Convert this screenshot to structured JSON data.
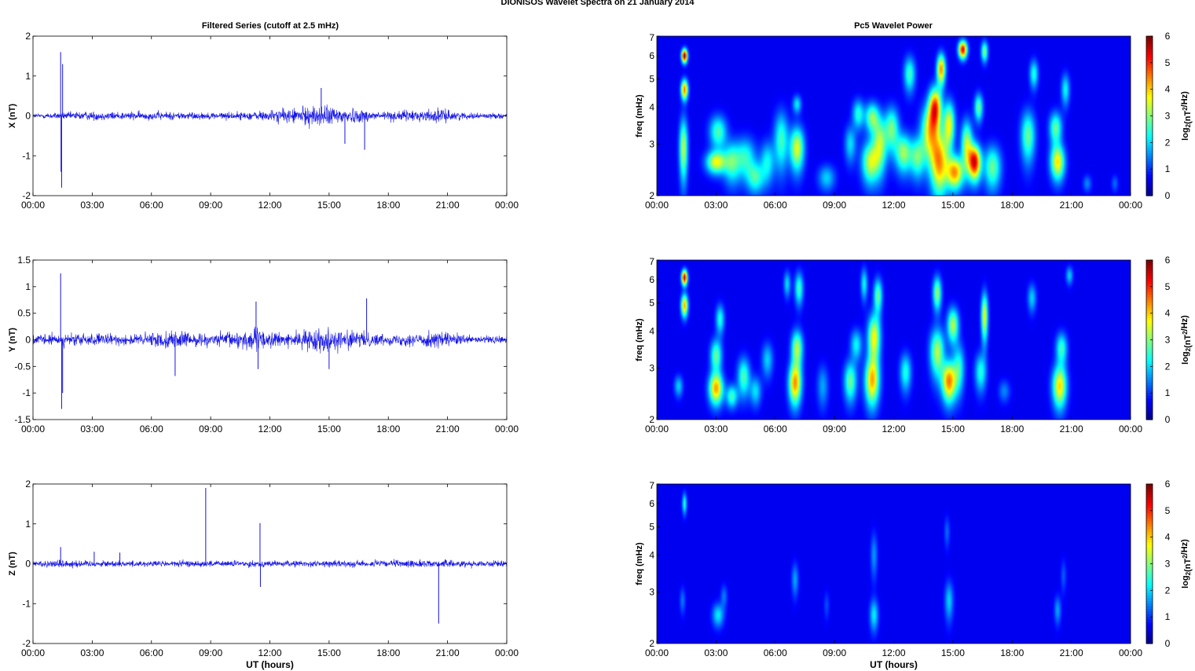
{
  "figure": {
    "title": "DIONISOS Wavelet Spectra on 21 January   2014",
    "left_column_title": "Filtered Series (cutoff at 2.5 mHz)",
    "right_column_title": "Pc5 Wavelet Power",
    "xlabel": "UT (hours)",
    "colors": {
      "trace": "#1414e6",
      "axis": "#000000",
      "heat_bg": "#00008f"
    }
  },
  "chart_data": [
    {
      "id": "x-series",
      "type": "line",
      "title": "",
      "ylabel": "X (nT)",
      "xlabel": "",
      "xlim": [
        0,
        24
      ],
      "ylim": [
        -2,
        2
      ],
      "xticks": [
        "00:00",
        "03:00",
        "06:00",
        "09:00",
        "12:00",
        "15:00",
        "18:00",
        "21:00",
        "00:00"
      ],
      "yticks": [
        -2,
        -1,
        0,
        1,
        2
      ],
      "yticklabels": [
        "-2",
        "-1",
        "0",
        "1",
        "2"
      ],
      "baseline_noise": 0.06,
      "activity": [
        [
          0,
          0.6
        ],
        [
          2.5,
          1.2
        ],
        [
          4.5,
          1.1
        ],
        [
          7,
          1.1
        ],
        [
          9,
          0.9
        ],
        [
          11,
          1.1
        ],
        [
          13,
          2.0
        ],
        [
          14.5,
          3.0
        ],
        [
          15.5,
          2.4
        ],
        [
          17.5,
          1.3
        ],
        [
          19,
          1.4
        ],
        [
          20.5,
          1.9
        ],
        [
          22,
          0.8
        ],
        [
          24,
          0.7
        ]
      ],
      "spikes": [
        [
          1.4,
          1.6
        ],
        [
          1.45,
          -1.8
        ],
        [
          1.5,
          1.3
        ],
        [
          1.42,
          -1.4
        ],
        [
          14.6,
          0.7
        ],
        [
          16.8,
          -0.85
        ],
        [
          15.8,
          -0.7
        ]
      ],
      "series": [
        {
          "name": "",
          "color": "#1414e6"
        }
      ]
    },
    {
      "id": "y-series",
      "type": "line",
      "title": "",
      "ylabel": "Y (nT)",
      "xlabel": "",
      "xlim": [
        0,
        24
      ],
      "ylim": [
        -1.5,
        1.5
      ],
      "xticks": [
        "00:00",
        "03:00",
        "06:00",
        "09:00",
        "12:00",
        "15:00",
        "18:00",
        "21:00",
        "00:00"
      ],
      "yticks": [
        -1.5,
        -1,
        -0.5,
        0,
        0.5,
        1,
        1.5
      ],
      "yticklabels": [
        "-1.5",
        "-1",
        "-0.5",
        "0",
        "0.5",
        "1",
        "1.5"
      ],
      "baseline_noise": 0.06,
      "activity": [
        [
          0,
          1.0
        ],
        [
          2.5,
          1.3
        ],
        [
          4.5,
          1.0
        ],
        [
          7,
          1.8
        ],
        [
          9,
          1.1
        ],
        [
          11,
          2.3
        ],
        [
          13,
          1.2
        ],
        [
          14.5,
          2.4
        ],
        [
          16.5,
          1.6
        ],
        [
          18,
          1.0
        ],
        [
          20.5,
          1.7
        ],
        [
          22,
          0.8
        ],
        [
          24,
          0.8
        ]
      ],
      "spikes": [
        [
          1.4,
          1.25
        ],
        [
          1.45,
          -1.3
        ],
        [
          1.5,
          -1.0
        ],
        [
          11.3,
          0.72
        ],
        [
          16.9,
          0.78
        ],
        [
          7.2,
          -0.68
        ],
        [
          11.4,
          -0.55
        ],
        [
          15.0,
          -0.55
        ]
      ],
      "series": [
        {
          "name": "",
          "color": "#1414e6"
        }
      ]
    },
    {
      "id": "z-series",
      "type": "line",
      "title": "",
      "ylabel": "Z (nT)",
      "xlabel": "UT (hours)",
      "xlim": [
        0,
        24
      ],
      "ylim": [
        -2,
        2
      ],
      "xticks": [
        "00:00",
        "03:00",
        "06:00",
        "09:00",
        "12:00",
        "15:00",
        "18:00",
        "21:00",
        "00:00"
      ],
      "yticks": [
        -2,
        -1,
        0,
        1,
        2
      ],
      "yticklabels": [
        "-2",
        "-1",
        "0",
        "1",
        "2"
      ],
      "baseline_noise": 0.05,
      "activity": [
        [
          0,
          1.0
        ],
        [
          1.4,
          1.4
        ],
        [
          3,
          1.0
        ],
        [
          9,
          1.0
        ],
        [
          12,
          1.0
        ],
        [
          15,
          1.0
        ],
        [
          20.5,
          1.2
        ],
        [
          24,
          0.9
        ]
      ],
      "spikes": [
        [
          8.75,
          1.9
        ],
        [
          11.5,
          1.02
        ],
        [
          11.52,
          -0.58
        ],
        [
          20.55,
          -1.5
        ],
        [
          1.4,
          0.42
        ],
        [
          3.1,
          0.3
        ],
        [
          4.4,
          0.28
        ]
      ],
      "series": [
        {
          "name": "",
          "color": "#1414e6"
        }
      ]
    },
    {
      "id": "x-wavelet",
      "type": "heatmap",
      "title": "",
      "ylabel": "freq (mHz)",
      "xlabel": "",
      "xlim": [
        0,
        24
      ],
      "ylim": [
        2,
        7
      ],
      "yscale": "log",
      "xticks": [
        "00:00",
        "03:00",
        "06:00",
        "09:00",
        "12:00",
        "15:00",
        "18:00",
        "21:00",
        "00:00"
      ],
      "yticks": [
        2,
        3,
        4,
        5,
        6,
        7
      ],
      "yticklabels": [
        "2",
        "3",
        "4",
        "5",
        "6",
        "7"
      ],
      "colorbar": {
        "label": "log2(nT2/Hz)",
        "range": [
          0,
          6
        ],
        "ticks": [
          "0",
          "1",
          "2",
          "3",
          "4",
          "5",
          "6"
        ]
      },
      "blobs": [
        [
          1.35,
          2.9,
          0.15,
          0.5,
          3.0
        ],
        [
          1.4,
          6.0,
          0.1,
          0.22,
          6.0
        ],
        [
          1.4,
          4.6,
          0.12,
          0.25,
          4.4
        ],
        [
          3.0,
          2.6,
          0.35,
          0.16,
          3.3
        ],
        [
          3.1,
          3.3,
          0.3,
          0.3,
          2.3
        ],
        [
          3.8,
          2.6,
          0.3,
          0.3,
          2.2
        ],
        [
          4.5,
          2.7,
          0.35,
          0.3,
          2.0
        ],
        [
          5.0,
          2.3,
          0.3,
          0.2,
          2.0
        ],
        [
          5.6,
          2.6,
          0.25,
          0.3,
          1.8
        ],
        [
          6.3,
          3.1,
          0.25,
          0.5,
          2.2
        ],
        [
          7.1,
          2.9,
          0.25,
          0.35,
          3.3
        ],
        [
          7.1,
          4.1,
          0.15,
          0.2,
          1.7
        ],
        [
          8.6,
          2.3,
          0.3,
          0.16,
          1.5
        ],
        [
          9.8,
          3.0,
          0.2,
          0.3,
          1.6
        ],
        [
          10.2,
          3.8,
          0.2,
          0.3,
          2.0
        ],
        [
          10.8,
          2.6,
          0.3,
          0.3,
          3.0
        ],
        [
          10.9,
          3.7,
          0.25,
          0.3,
          2.6
        ],
        [
          11.3,
          3.0,
          0.25,
          0.45,
          2.8
        ],
        [
          11.9,
          3.4,
          0.25,
          0.4,
          2.5
        ],
        [
          12.5,
          2.8,
          0.3,
          0.3,
          2.8
        ],
        [
          12.8,
          5.2,
          0.2,
          0.5,
          2.2
        ],
        [
          13.2,
          2.7,
          0.25,
          0.3,
          2.3
        ],
        [
          13.8,
          3.3,
          0.3,
          0.5,
          3.2
        ],
        [
          14.1,
          4.0,
          0.22,
          0.45,
          4.6
        ],
        [
          14.3,
          2.6,
          0.3,
          0.45,
          4.0
        ],
        [
          14.4,
          5.4,
          0.15,
          0.45,
          4.2
        ],
        [
          14.8,
          3.5,
          0.2,
          0.45,
          3.4
        ],
        [
          15.1,
          2.4,
          0.3,
          0.22,
          4.1
        ],
        [
          15.5,
          6.3,
          0.15,
          0.3,
          5.3
        ],
        [
          15.7,
          3.0,
          0.2,
          0.4,
          3.0
        ],
        [
          16.1,
          2.6,
          0.22,
          0.25,
          5.3
        ],
        [
          16.3,
          4.0,
          0.15,
          0.3,
          2.5
        ],
        [
          16.6,
          6.2,
          0.12,
          0.35,
          2.6
        ],
        [
          17.0,
          2.5,
          0.3,
          0.3,
          2.5
        ],
        [
          18.8,
          3.2,
          0.25,
          0.45,
          2.5
        ],
        [
          19.1,
          5.2,
          0.15,
          0.4,
          2.0
        ],
        [
          20.3,
          2.6,
          0.25,
          0.25,
          3.6
        ],
        [
          20.2,
          3.4,
          0.22,
          0.3,
          2.5
        ],
        [
          20.7,
          4.6,
          0.15,
          0.4,
          1.8
        ],
        [
          21.8,
          2.2,
          0.15,
          0.1,
          1.0
        ],
        [
          23.2,
          2.2,
          0.12,
          0.1,
          0.8
        ]
      ]
    },
    {
      "id": "y-wavelet",
      "type": "heatmap",
      "title": "",
      "ylabel": "freq (mHz)",
      "xlabel": "",
      "xlim": [
        0,
        24
      ],
      "ylim": [
        2,
        7
      ],
      "yscale": "log",
      "xticks": [
        "00:00",
        "03:00",
        "06:00",
        "09:00",
        "12:00",
        "15:00",
        "18:00",
        "21:00",
        "00:00"
      ],
      "yticks": [
        2,
        3,
        4,
        5,
        6,
        7
      ],
      "yticklabels": [
        "2",
        "3",
        "4",
        "5",
        "6",
        "7"
      ],
      "colorbar": {
        "label": "log2(nT2/Hz)",
        "range": [
          0,
          6
        ],
        "ticks": [
          "0",
          "1",
          "2",
          "3",
          "4",
          "5",
          "6"
        ]
      },
      "blobs": [
        [
          1.4,
          6.1,
          0.1,
          0.25,
          5.6
        ],
        [
          1.4,
          4.9,
          0.12,
          0.3,
          4.0
        ],
        [
          1.1,
          2.6,
          0.15,
          0.15,
          1.5
        ],
        [
          3.0,
          2.55,
          0.25,
          0.22,
          4.0
        ],
        [
          3.0,
          3.3,
          0.2,
          0.3,
          2.5
        ],
        [
          3.2,
          4.4,
          0.15,
          0.35,
          2.0
        ],
        [
          3.8,
          2.4,
          0.2,
          0.15,
          2.2
        ],
        [
          4.4,
          2.8,
          0.22,
          0.3,
          2.3
        ],
        [
          5.0,
          2.5,
          0.2,
          0.2,
          1.6
        ],
        [
          5.6,
          3.2,
          0.2,
          0.3,
          1.5
        ],
        [
          7.0,
          2.65,
          0.22,
          0.3,
          4.1
        ],
        [
          7.1,
          3.5,
          0.2,
          0.35,
          3.0
        ],
        [
          7.2,
          5.6,
          0.15,
          0.5,
          2.2
        ],
        [
          6.6,
          5.8,
          0.12,
          0.4,
          1.6
        ],
        [
          8.4,
          2.6,
          0.2,
          0.3,
          1.2
        ],
        [
          9.8,
          2.7,
          0.22,
          0.3,
          2.5
        ],
        [
          10.1,
          3.6,
          0.2,
          0.3,
          1.8
        ],
        [
          10.9,
          2.7,
          0.25,
          0.35,
          3.8
        ],
        [
          11.0,
          3.8,
          0.22,
          0.5,
          3.5
        ],
        [
          11.2,
          5.3,
          0.15,
          0.5,
          2.5
        ],
        [
          10.5,
          5.8,
          0.12,
          0.5,
          1.8
        ],
        [
          12.6,
          2.9,
          0.2,
          0.3,
          2.0
        ],
        [
          14.2,
          3.4,
          0.25,
          0.45,
          3.0
        ],
        [
          14.2,
          5.4,
          0.15,
          0.5,
          2.8
        ],
        [
          14.8,
          2.7,
          0.25,
          0.3,
          4.3
        ],
        [
          15.0,
          4.2,
          0.2,
          0.4,
          3.0
        ],
        [
          15.3,
          3.0,
          0.2,
          0.4,
          2.0
        ],
        [
          16.6,
          4.5,
          0.12,
          0.6,
          3.3
        ],
        [
          16.4,
          2.9,
          0.2,
          0.3,
          2.0
        ],
        [
          17.6,
          2.5,
          0.2,
          0.15,
          1.0
        ],
        [
          19.0,
          5.2,
          0.15,
          0.4,
          1.5
        ],
        [
          20.4,
          2.6,
          0.25,
          0.3,
          3.7
        ],
        [
          20.5,
          3.5,
          0.2,
          0.3,
          2.2
        ],
        [
          20.9,
          6.2,
          0.12,
          0.3,
          1.5
        ]
      ]
    },
    {
      "id": "z-wavelet",
      "type": "heatmap",
      "title": "",
      "ylabel": "freq (mHz)",
      "xlabel": "UT (hours)",
      "xlim": [
        0,
        24
      ],
      "ylim": [
        2,
        7
      ],
      "yscale": "log",
      "xticks": [
        "00:00",
        "03:00",
        "06:00",
        "09:00",
        "12:00",
        "15:00",
        "18:00",
        "21:00",
        "00:00"
      ],
      "yticks": [
        2,
        3,
        4,
        5,
        6,
        7
      ],
      "yticklabels": [
        "2",
        "3",
        "4",
        "5",
        "6",
        "7"
      ],
      "colorbar": {
        "label": "log2(nT2/Hz)",
        "range": [
          0,
          6
        ],
        "ticks": [
          "0",
          "1",
          "2",
          "3",
          "4",
          "5",
          "6"
        ]
      },
      "blobs": [
        [
          1.4,
          6.0,
          0.08,
          0.35,
          2.0
        ],
        [
          1.3,
          2.8,
          0.1,
          0.2,
          0.9
        ],
        [
          3.1,
          2.5,
          0.2,
          0.16,
          1.7
        ],
        [
          3.4,
          2.9,
          0.12,
          0.18,
          0.9
        ],
        [
          7.0,
          3.3,
          0.12,
          0.3,
          1.2
        ],
        [
          8.6,
          2.7,
          0.1,
          0.2,
          0.6
        ],
        [
          11.0,
          2.5,
          0.15,
          0.22,
          1.7
        ],
        [
          11.0,
          4.0,
          0.12,
          0.5,
          1.1
        ],
        [
          14.8,
          2.8,
          0.15,
          0.3,
          1.5
        ],
        [
          14.7,
          4.8,
          0.1,
          0.4,
          0.8
        ],
        [
          20.3,
          2.6,
          0.12,
          0.2,
          1.2
        ],
        [
          20.6,
          3.4,
          0.1,
          0.3,
          0.7
        ]
      ]
    }
  ]
}
